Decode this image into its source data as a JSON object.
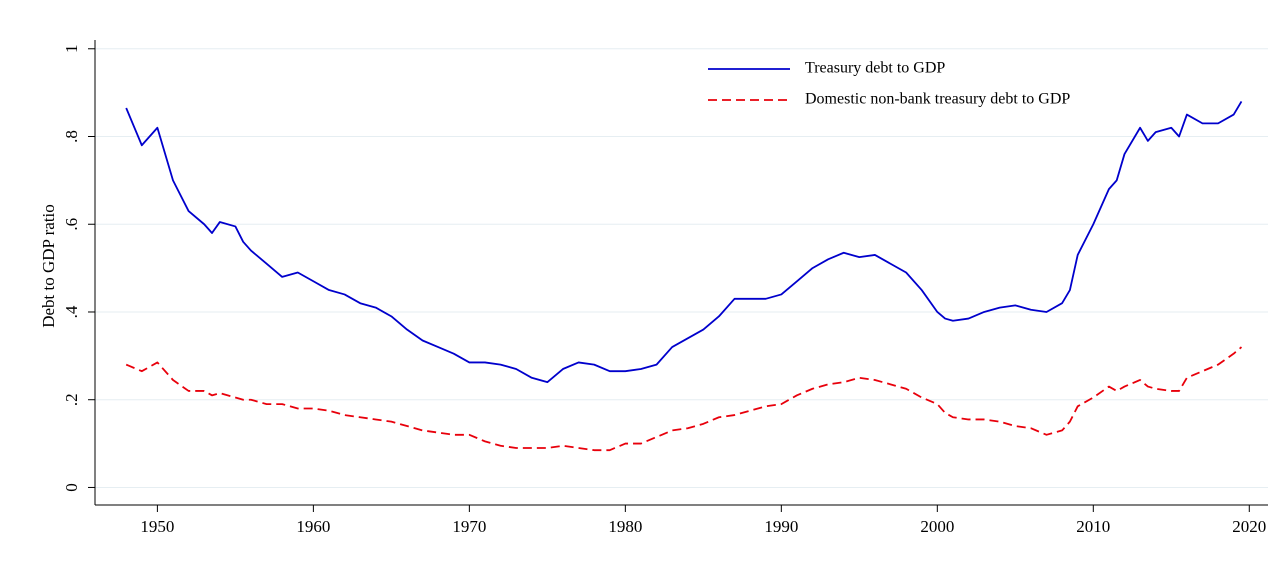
{
  "chart_data": {
    "type": "line",
    "y_label": "Debt to GDP ratio",
    "x": [
      1948,
      1949,
      1950,
      1951,
      1952,
      1953,
      1953.5,
      1954,
      1955,
      1955.5,
      1956,
      1957,
      1958,
      1959,
      1960,
      1961,
      1962,
      1963,
      1964,
      1965,
      1966,
      1967,
      1968,
      1969,
      1970,
      1971,
      1972,
      1973,
      1974,
      1975,
      1976,
      1977,
      1978,
      1979,
      1980,
      1981,
      1982,
      1983,
      1984,
      1985,
      1986,
      1987,
      1988,
      1989,
      1990,
      1991,
      1992,
      1993,
      1994,
      1995,
      1996,
      1997,
      1998,
      1999,
      2000,
      2000.5,
      2001,
      2002,
      2003,
      2004,
      2005,
      2006,
      2007,
      2008,
      2008.5,
      2009,
      2010,
      2011,
      2011.5,
      2012,
      2013,
      2013.5,
      2014,
      2015,
      2015.5,
      2016,
      2017,
      2018,
      2019,
      2019.5
    ],
    "series": [
      {
        "name": "Treasury debt to GDP",
        "color": "#0000cc",
        "dash": false,
        "values": [
          0.865,
          0.78,
          0.82,
          0.7,
          0.63,
          0.6,
          0.58,
          0.605,
          0.595,
          0.56,
          0.54,
          0.51,
          0.48,
          0.49,
          0.47,
          0.45,
          0.44,
          0.42,
          0.41,
          0.39,
          0.36,
          0.335,
          0.32,
          0.305,
          0.285,
          0.285,
          0.28,
          0.27,
          0.25,
          0.24,
          0.27,
          0.285,
          0.28,
          0.265,
          0.265,
          0.27,
          0.28,
          0.32,
          0.34,
          0.36,
          0.39,
          0.43,
          0.43,
          0.43,
          0.44,
          0.47,
          0.5,
          0.52,
          0.535,
          0.525,
          0.53,
          0.51,
          0.49,
          0.45,
          0.4,
          0.385,
          0.38,
          0.385,
          0.4,
          0.41,
          0.415,
          0.405,
          0.4,
          0.42,
          0.45,
          0.53,
          0.6,
          0.68,
          0.7,
          0.76,
          0.82,
          0.79,
          0.81,
          0.82,
          0.8,
          0.85,
          0.83,
          0.83,
          0.85,
          0.88
        ]
      },
      {
        "name": "Domestic non-bank treasury debt to GDP",
        "color": "#e8000b",
        "dash": true,
        "values": [
          0.28,
          0.265,
          0.285,
          0.245,
          0.22,
          0.22,
          0.21,
          0.215,
          0.205,
          0.2,
          0.2,
          0.19,
          0.19,
          0.18,
          0.18,
          0.175,
          0.165,
          0.16,
          0.155,
          0.15,
          0.14,
          0.13,
          0.125,
          0.12,
          0.12,
          0.105,
          0.095,
          0.09,
          0.09,
          0.09,
          0.095,
          0.09,
          0.085,
          0.085,
          0.1,
          0.1,
          0.115,
          0.13,
          0.135,
          0.145,
          0.16,
          0.165,
          0.175,
          0.185,
          0.19,
          0.21,
          0.225,
          0.235,
          0.24,
          0.25,
          0.245,
          0.235,
          0.225,
          0.205,
          0.19,
          0.17,
          0.16,
          0.155,
          0.155,
          0.15,
          0.14,
          0.135,
          0.12,
          0.13,
          0.15,
          0.185,
          0.205,
          0.23,
          0.22,
          0.23,
          0.245,
          0.23,
          0.225,
          0.22,
          0.22,
          0.25,
          0.265,
          0.28,
          0.305,
          0.32
        ]
      }
    ],
    "xlim": [
      1946,
      2021.2
    ],
    "xticks": [
      1950,
      1960,
      1970,
      1980,
      1990,
      2000,
      2010,
      2020
    ],
    "ylim": [
      -0.04,
      1.02
    ],
    "yticks": [
      0,
      {
        "value": 0.2,
        "label": ".2"
      },
      {
        "value": 0.4,
        "label": ".4"
      },
      {
        "value": 0.6,
        "label": ".6"
      },
      {
        "value": 0.8,
        "label": ".8"
      },
      1
    ],
    "grid": true,
    "legend": "top-right"
  }
}
